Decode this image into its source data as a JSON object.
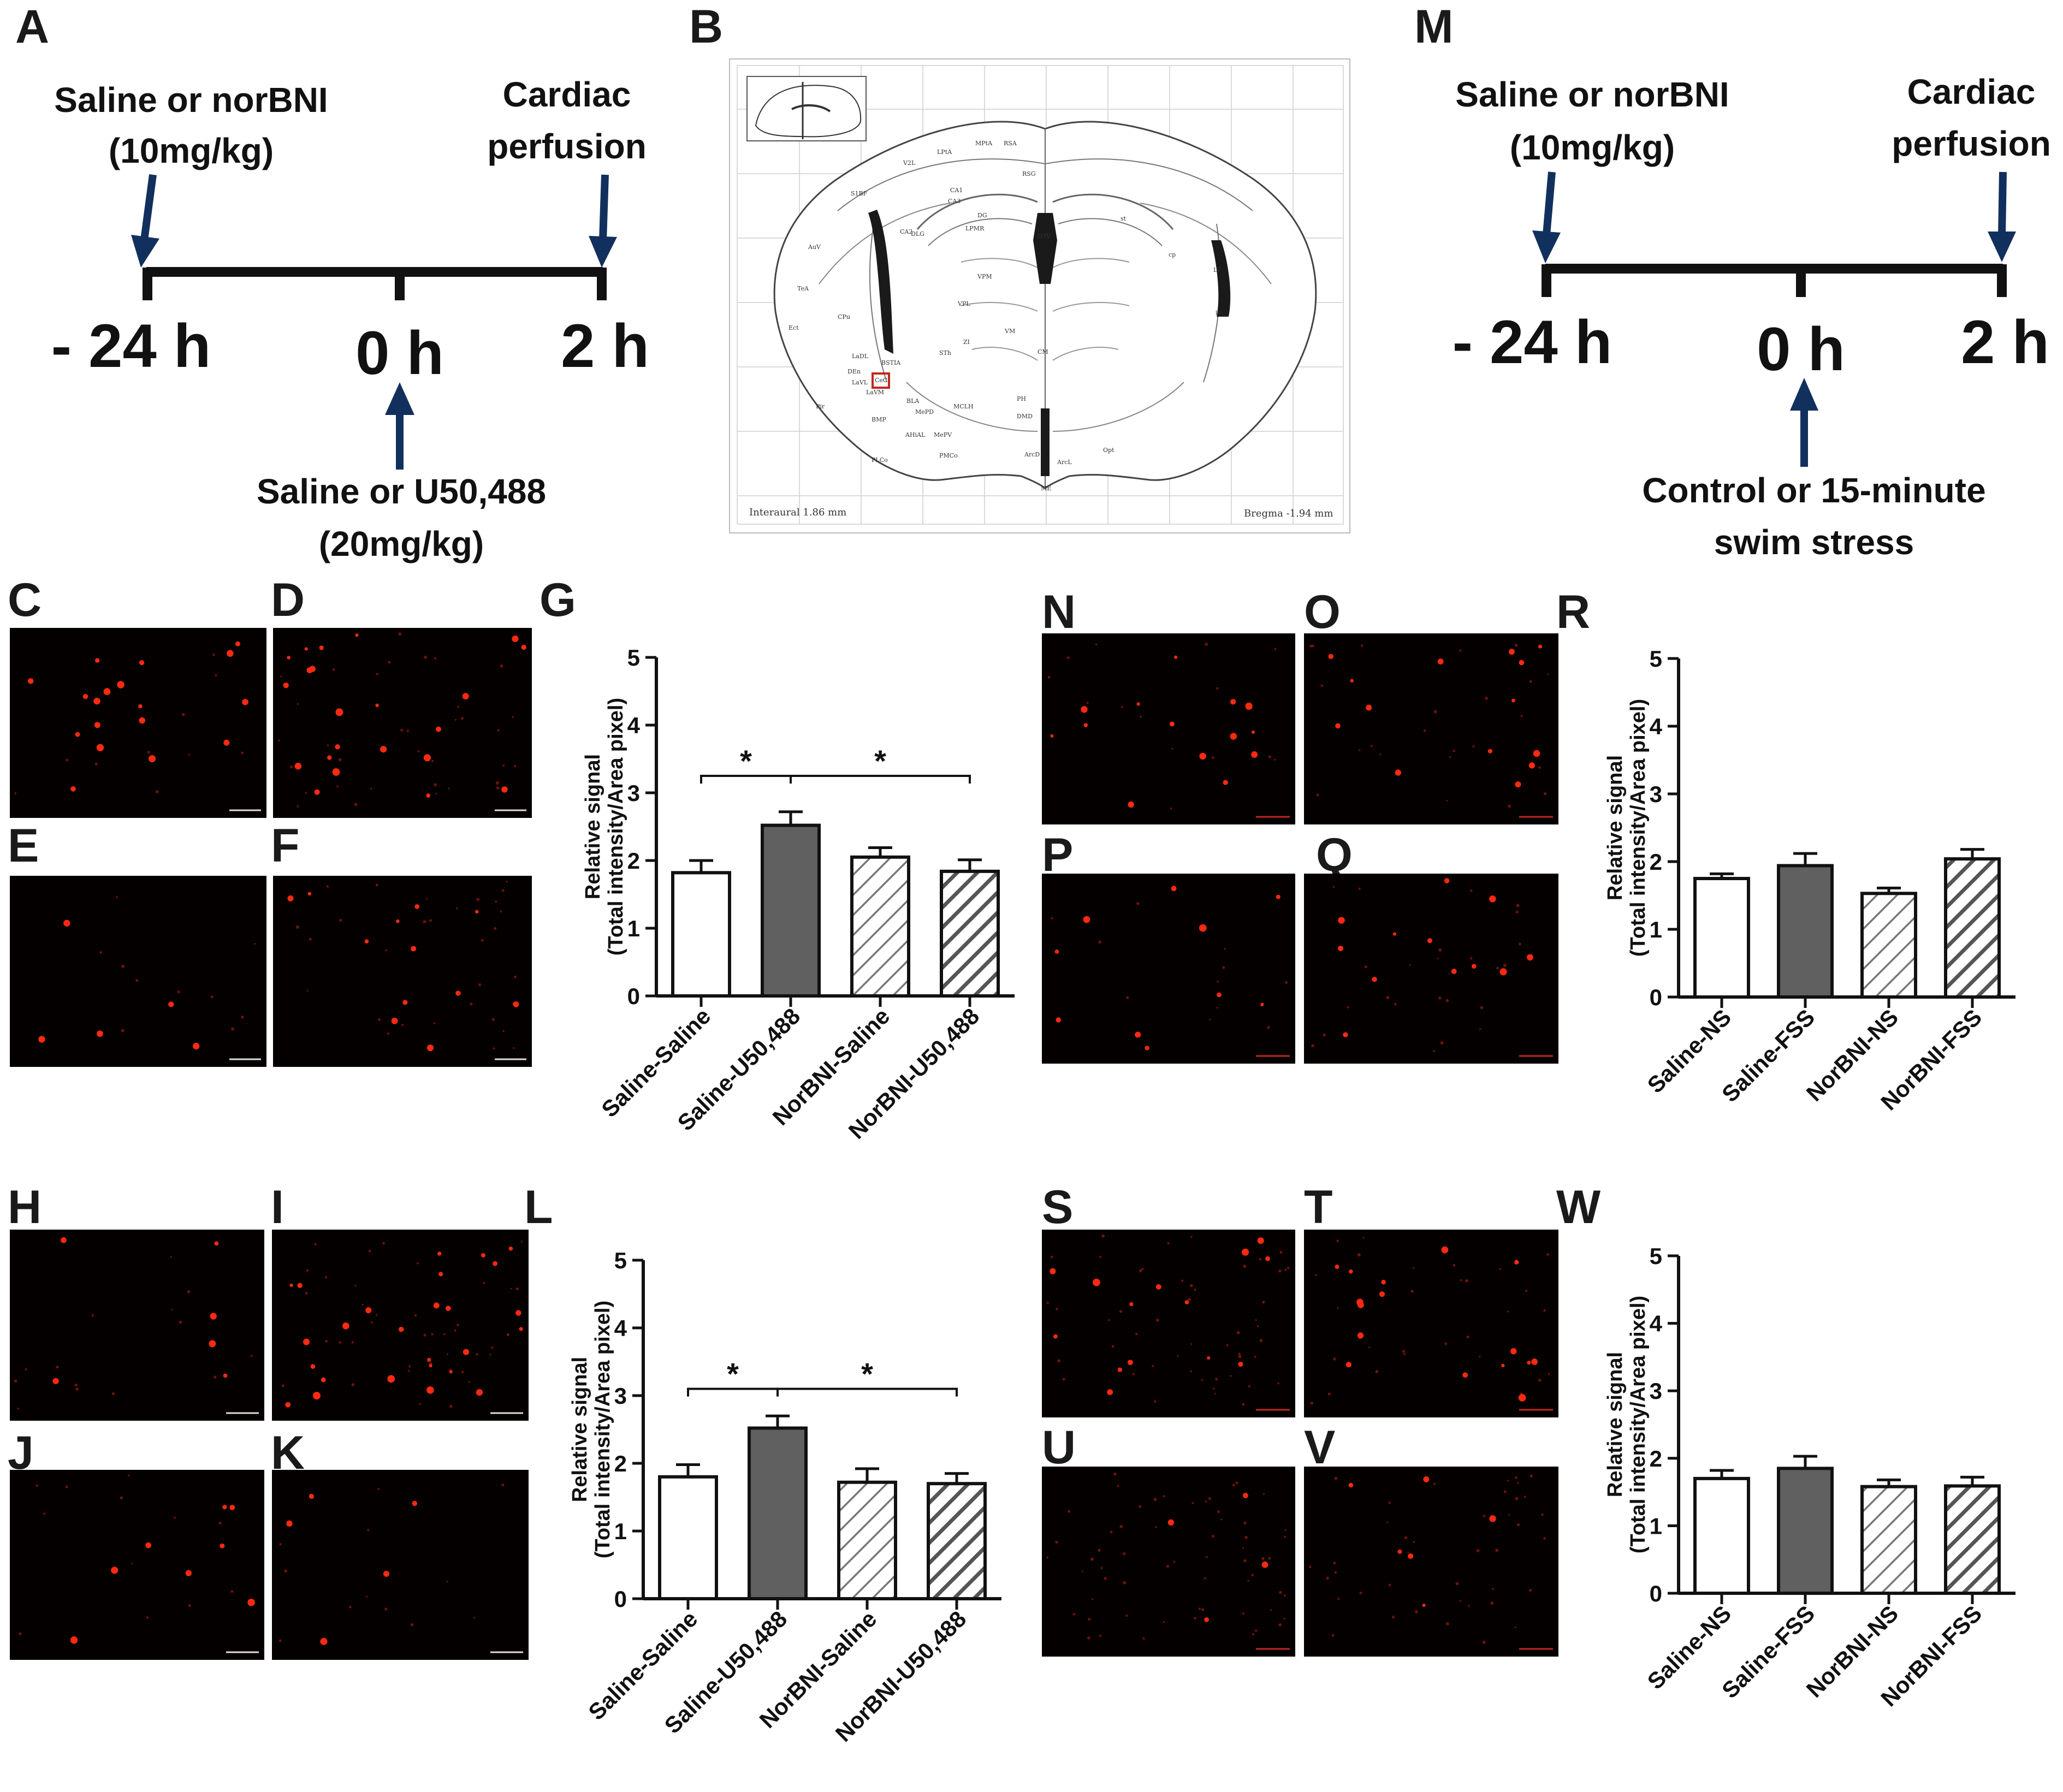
{
  "panels": {
    "A": "A",
    "B": "B",
    "C": "C",
    "D": "D",
    "E": "E",
    "F": "F",
    "G": "G",
    "H": "H",
    "I": "I",
    "J": "J",
    "K": "K",
    "L": "L",
    "M": "M",
    "N": "N",
    "O": "O",
    "P": "P",
    "Q": "Q",
    "R": "R",
    "S": "S",
    "T": "T",
    "U": "U",
    "V": "V",
    "W": "W"
  },
  "timeline_A": {
    "top_left_1": "Saline or norBNI",
    "top_left_2": "(10mg/kg)",
    "top_right_1": "Cardiac",
    "top_right_2": "perfusion",
    "t_minus24": "- 24 h",
    "t_0": "0 h",
    "t_2": "2 h",
    "bottom_1": "Saline or U50,488",
    "bottom_2": "(20mg/kg)"
  },
  "timeline_M": {
    "top_left_1": "Saline or norBNI",
    "top_left_2": "(10mg/kg)",
    "top_right_1": "Cardiac",
    "top_right_2": "perfusion",
    "t_minus24": "- 24 h",
    "t_0": "0 h",
    "t_2": "2 h",
    "bottom_1": "Control or 15-minute",
    "bottom_2": "swim stress"
  },
  "atlas": {
    "interaural": "Interaural 1.86 mm",
    "bregma": "Bregma -1.94 mm",
    "region_labels": [
      "VPL",
      "VPM",
      "LPMR",
      "DLG",
      "CA3",
      "CA2",
      "CA1",
      "DG",
      "BLA",
      "CeC",
      "LaDL",
      "LaVL",
      "LaVM",
      "BMP",
      "Pir",
      "Ect",
      "AuV",
      "S1BF",
      "MPtA",
      "RSA",
      "RSG",
      "LPtA",
      "V2L",
      "D3V",
      "CM",
      "VM",
      "PH",
      "MCLH",
      "DMD",
      "ZI",
      "STh",
      "AHiAL",
      "BSTIA",
      "MePD",
      "MePV",
      "ArcD",
      "ArcL",
      "ME",
      "PMCo",
      "PLCo",
      "Opt",
      "ic",
      "cp",
      "st",
      "LV",
      "DEn",
      "CPu",
      "TeA"
    ]
  },
  "colors": {
    "dark_arrow": "#12305e",
    "axis": "#111111",
    "bar_white": "#ffffff",
    "bar_dark": "#606060",
    "red_signal": "#ff2a10",
    "scale_white": "#dddddd",
    "scale_red": "#c0281c"
  },
  "chart_data": [
    {
      "panel": "G",
      "type": "bar",
      "ylabel": "Relative signal",
      "ylabel2": "(Total intensity/Area pixel)",
      "ylim": [
        0,
        5
      ],
      "yticks": [
        "0",
        "1",
        "2",
        "3",
        "4",
        "5"
      ],
      "categories": [
        "Saline-Saline",
        "Saline-U50,488",
        "NorBNI-Saline",
        "NorBNI-U50,488"
      ],
      "values": [
        1.82,
        2.52,
        2.05,
        1.84
      ],
      "errors": [
        0.18,
        0.2,
        0.14,
        0.17
      ],
      "fills": [
        "white",
        "dark",
        "hatch-white",
        "hatch-dark"
      ],
      "significance": [
        {
          "from": 0,
          "to": 1,
          "label": "*",
          "y": 3.25
        },
        {
          "from": 1,
          "to": 3,
          "label": "*",
          "y": 3.25
        }
      ]
    },
    {
      "panel": "L",
      "type": "bar",
      "ylabel": "Relative signal",
      "ylabel2": "(Total intensity/Area pixel)",
      "ylim": [
        0,
        5
      ],
      "yticks": [
        "0",
        "1",
        "2",
        "3",
        "4",
        "5"
      ],
      "categories": [
        "Saline-Saline",
        "Saline-U50,488",
        "NorBNI-Saline",
        "NorBNI-U50,488"
      ],
      "values": [
        1.8,
        2.52,
        1.72,
        1.7
      ],
      "errors": [
        0.18,
        0.18,
        0.2,
        0.15
      ],
      "fills": [
        "white",
        "dark",
        "hatch-white",
        "hatch-dark"
      ],
      "significance": [
        {
          "from": 0,
          "to": 1,
          "label": "*",
          "y": 3.1
        },
        {
          "from": 1,
          "to": 3,
          "label": "*",
          "y": 3.1
        }
      ]
    },
    {
      "panel": "R",
      "type": "bar",
      "ylabel": "Relative signal",
      "ylabel2": "(Total intensity/Area pixel)",
      "ylim": [
        0,
        5
      ],
      "yticks": [
        "0",
        "1",
        "2",
        "3",
        "4",
        "5"
      ],
      "categories": [
        "Saline-NS",
        "Saline-FSS",
        "NorBNI-NS",
        "NorBNI-FSS"
      ],
      "values": [
        1.75,
        1.94,
        1.53,
        2.04
      ],
      "errors": [
        0.07,
        0.18,
        0.08,
        0.14
      ],
      "fills": [
        "white",
        "dark",
        "hatch-white",
        "hatch-dark"
      ],
      "significance": []
    },
    {
      "panel": "W",
      "type": "bar",
      "ylabel": "Relative signal",
      "ylabel2": "(Total intensity/Area pixel)",
      "ylim": [
        0,
        5
      ],
      "yticks": [
        "0",
        "1",
        "2",
        "3",
        "4",
        "5"
      ],
      "categories": [
        "Saline-NS",
        "Saline-FSS",
        "NorBNI-NS",
        "NorBNI-FSS"
      ],
      "values": [
        1.7,
        1.85,
        1.58,
        1.59
      ],
      "errors": [
        0.12,
        0.18,
        0.1,
        0.13
      ],
      "fills": [
        "white",
        "dark",
        "hatch-white",
        "hatch-dark"
      ],
      "significance": []
    }
  ]
}
